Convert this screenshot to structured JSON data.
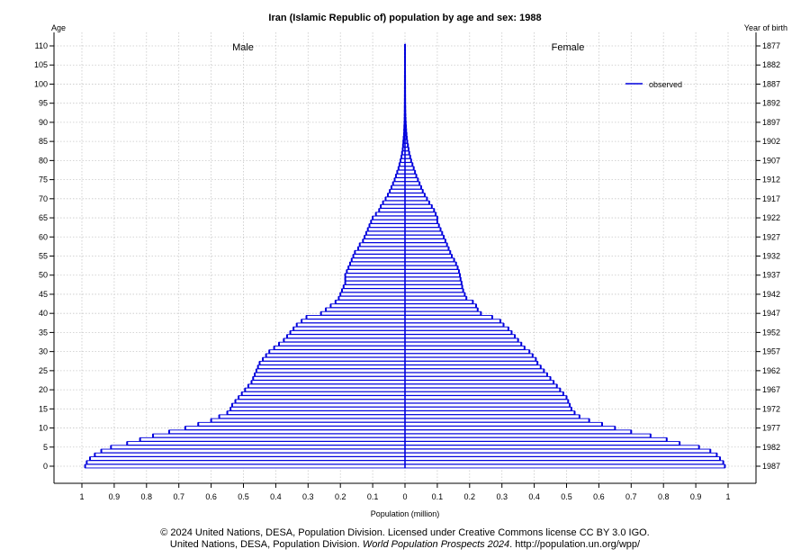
{
  "chart_data": {
    "type": "bar",
    "subtype": "population-pyramid",
    "title": "Iran (Islamic Republic of) population by age and sex: 1988",
    "xlabel": "Population (million)",
    "ylabel_left": "Age",
    "ylabel_right": "Year of birth",
    "left_group_label": "Male",
    "right_group_label": "Female",
    "legend": [
      {
        "label": "observed",
        "color": "#0000dd"
      }
    ],
    "legend_position": "top-right",
    "xlim": [
      -1,
      1
    ],
    "ylim": [
      0,
      110
    ],
    "x_ticks": [
      -1,
      -0.9,
      -0.8,
      -0.7,
      -0.6,
      -0.5,
      -0.4,
      -0.3,
      -0.2,
      -0.1,
      0,
      0.1,
      0.2,
      0.3,
      0.4,
      0.5,
      0.6,
      0.7,
      0.8,
      0.9,
      1
    ],
    "x_tick_labels": [
      "1",
      "0.9",
      "0.8",
      "0.7",
      "0.6",
      "0.5",
      "0.4",
      "0.3",
      "0.2",
      "0.1",
      "0",
      "0.1",
      "0.2",
      "0.3",
      "0.4",
      "0.5",
      "0.6",
      "0.7",
      "0.8",
      "0.9",
      "1"
    ],
    "age_ticks": [
      0,
      5,
      10,
      15,
      20,
      25,
      30,
      35,
      40,
      45,
      50,
      55,
      60,
      65,
      70,
      75,
      80,
      85,
      90,
      95,
      100,
      105,
      110
    ],
    "age_tick_labels": [
      "0",
      "5",
      "10",
      "15",
      "20",
      "25",
      "30",
      "35",
      "40",
      "45",
      "50",
      "55",
      "60",
      "65",
      "70",
      "75",
      "80",
      "85",
      "90",
      "95",
      "100",
      "105",
      "110"
    ],
    "birth_year_labels": [
      "1987",
      "1982",
      "1977",
      "1972",
      "1967",
      "1962",
      "1957",
      "1952",
      "1947",
      "1942",
      "1937",
      "1932",
      "1927",
      "1922",
      "1917",
      "1912",
      "1907",
      "1902",
      "1897",
      "1892",
      "1887",
      "1882",
      "1877"
    ],
    "grid": true,
    "series": [
      {
        "name": "Male",
        "unit": "million",
        "ages": [
          0,
          1,
          2,
          3,
          4,
          5,
          6,
          7,
          8,
          9,
          10,
          11,
          12,
          13,
          14,
          15,
          16,
          17,
          18,
          19,
          20,
          21,
          22,
          23,
          24,
          25,
          26,
          27,
          28,
          29,
          30,
          31,
          32,
          33,
          34,
          35,
          36,
          37,
          38,
          39,
          40,
          41,
          42,
          43,
          44,
          45,
          46,
          47,
          48,
          49,
          50,
          51,
          52,
          53,
          54,
          55,
          56,
          57,
          58,
          59,
          60,
          61,
          62,
          63,
          64,
          65,
          66,
          67,
          68,
          69,
          70,
          71,
          72,
          73,
          74,
          75,
          76,
          77,
          78,
          79,
          80,
          81,
          82,
          83,
          84,
          85,
          86,
          87,
          88,
          89,
          90,
          91,
          92,
          93,
          94,
          95,
          96,
          97,
          98,
          99,
          100,
          101,
          102,
          103,
          104,
          105,
          106,
          107,
          108,
          109,
          110
        ],
        "values": [
          0.99,
          0.985,
          0.975,
          0.96,
          0.94,
          0.91,
          0.86,
          0.82,
          0.78,
          0.73,
          0.68,
          0.64,
          0.6,
          0.575,
          0.55,
          0.54,
          0.535,
          0.525,
          0.515,
          0.505,
          0.495,
          0.485,
          0.475,
          0.47,
          0.465,
          0.46,
          0.455,
          0.45,
          0.44,
          0.43,
          0.42,
          0.405,
          0.39,
          0.375,
          0.365,
          0.355,
          0.345,
          0.335,
          0.32,
          0.305,
          0.26,
          0.245,
          0.23,
          0.215,
          0.205,
          0.2,
          0.195,
          0.19,
          0.185,
          0.185,
          0.185,
          0.18,
          0.175,
          0.17,
          0.165,
          0.16,
          0.155,
          0.145,
          0.14,
          0.13,
          0.125,
          0.12,
          0.115,
          0.11,
          0.105,
          0.1,
          0.09,
          0.08,
          0.075,
          0.068,
          0.06,
          0.053,
          0.047,
          0.042,
          0.037,
          0.032,
          0.028,
          0.024,
          0.02,
          0.017,
          0.014,
          0.011,
          0.009,
          0.007,
          0.006,
          0.005,
          0.004,
          0.003,
          0.0025,
          0.002,
          0.0015,
          0.0012,
          0.001,
          0.0008,
          0.0007,
          0.0006,
          0.0005,
          0.0004,
          0.0003,
          0.0003,
          0.0002,
          0.0002,
          0.0002,
          0.0001,
          0.0001,
          0.0001,
          0.0001,
          0.0001,
          0.0001,
          0.0001,
          0.0001
        ]
      },
      {
        "name": "Female",
        "unit": "million",
        "ages": [
          0,
          1,
          2,
          3,
          4,
          5,
          6,
          7,
          8,
          9,
          10,
          11,
          12,
          13,
          14,
          15,
          16,
          17,
          18,
          19,
          20,
          21,
          22,
          23,
          24,
          25,
          26,
          27,
          28,
          29,
          30,
          31,
          32,
          33,
          34,
          35,
          36,
          37,
          38,
          39,
          40,
          41,
          42,
          43,
          44,
          45,
          46,
          47,
          48,
          49,
          50,
          51,
          52,
          53,
          54,
          55,
          56,
          57,
          58,
          59,
          60,
          61,
          62,
          63,
          64,
          65,
          66,
          67,
          68,
          69,
          70,
          71,
          72,
          73,
          74,
          75,
          76,
          77,
          78,
          79,
          80,
          81,
          82,
          83,
          84,
          85,
          86,
          87,
          88,
          89,
          90,
          91,
          92,
          93,
          94,
          95,
          96,
          97,
          98,
          99,
          100,
          101,
          102,
          103,
          104,
          105,
          106,
          107,
          108,
          109,
          110
        ],
        "values": [
          0.99,
          0.985,
          0.975,
          0.965,
          0.945,
          0.91,
          0.85,
          0.81,
          0.76,
          0.7,
          0.65,
          0.61,
          0.57,
          0.54,
          0.525,
          0.515,
          0.51,
          0.505,
          0.5,
          0.49,
          0.48,
          0.47,
          0.46,
          0.45,
          0.44,
          0.43,
          0.42,
          0.41,
          0.405,
          0.395,
          0.385,
          0.37,
          0.36,
          0.35,
          0.34,
          0.33,
          0.32,
          0.305,
          0.295,
          0.27,
          0.235,
          0.225,
          0.22,
          0.21,
          0.19,
          0.185,
          0.18,
          0.177,
          0.175,
          0.172,
          0.17,
          0.167,
          0.163,
          0.158,
          0.152,
          0.145,
          0.14,
          0.135,
          0.13,
          0.125,
          0.12,
          0.115,
          0.11,
          0.105,
          0.1,
          0.1,
          0.095,
          0.09,
          0.083,
          0.075,
          0.068,
          0.061,
          0.055,
          0.05,
          0.045,
          0.04,
          0.035,
          0.031,
          0.027,
          0.023,
          0.019,
          0.016,
          0.013,
          0.011,
          0.009,
          0.007,
          0.0055,
          0.0045,
          0.0035,
          0.0028,
          0.0022,
          0.0017,
          0.0013,
          0.001,
          0.0008,
          0.0006,
          0.0005,
          0.0004,
          0.0003,
          0.0003,
          0.0002,
          0.0002,
          0.0002,
          0.0001,
          0.0001,
          0.0001,
          0.0001,
          0.0001,
          0.0001,
          0.0001,
          0.0001
        ]
      }
    ]
  },
  "footer": {
    "line1": "© 2024 United Nations, DESA, Population Division. Licensed under Creative Commons license CC BY 3.0 IGO.",
    "line2_prefix": "United Nations, DESA, Population Division. ",
    "line2_italic": "World Population Prospects 2024",
    "line2_suffix": ". http://population.un.org/wpp/"
  },
  "colors": {
    "bar_outline": "#0000dd",
    "bar_fill": "#ffffff",
    "grid": "#c8c8c8",
    "axis": "#000000"
  }
}
